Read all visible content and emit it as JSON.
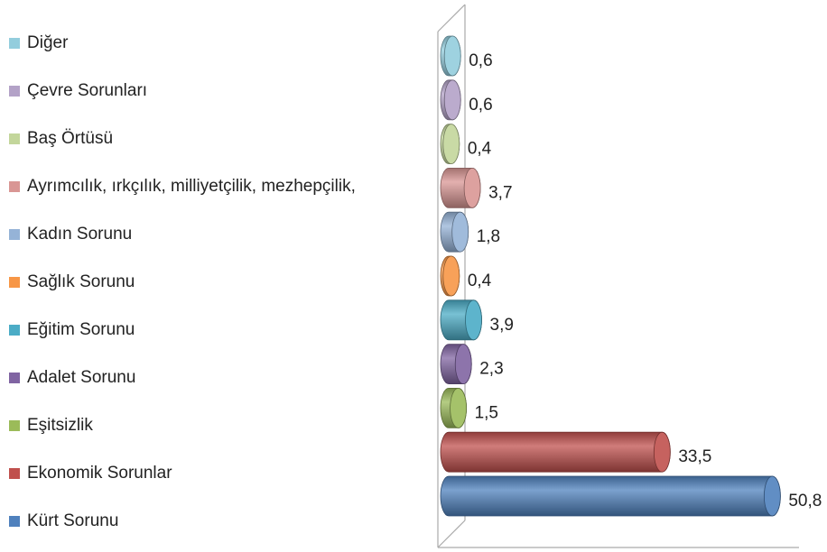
{
  "chart_data": {
    "type": "bar3d_horizontal",
    "categories": [
      "Kürt Sorunu",
      "Ekonomik Sorunlar",
      "Eşitsizlik",
      "Adalet Sorunu",
      "Eğitim Sorunu",
      "Sağlık Sorunu",
      "Kadın Sorunu",
      "Ayrımcılık, ırkçılık, milliyetçilik, mezhepçilik,",
      "Baş Örtüsü",
      "Çevre Sorunları",
      "Diğer"
    ],
    "values": [
      50.8,
      33.5,
      1.5,
      2.3,
      3.9,
      0.4,
      1.8,
      3.7,
      0.4,
      0.6,
      0.6
    ],
    "value_labels": [
      "50,8",
      "33,5",
      "1,5",
      "2,3",
      "3,9",
      "0,4",
      "1,8",
      "3,7",
      "0,4",
      "0,6",
      "0,6"
    ],
    "colors": [
      "#4f81bd",
      "#c0504d",
      "#9bbb59",
      "#8064a2",
      "#4bacc6",
      "#f79646",
      "#95b3d7",
      "#d99694",
      "#c3d69b",
      "#b3a2c7",
      "#93cddd"
    ],
    "xlim": [
      0,
      55
    ],
    "legend": "left"
  }
}
